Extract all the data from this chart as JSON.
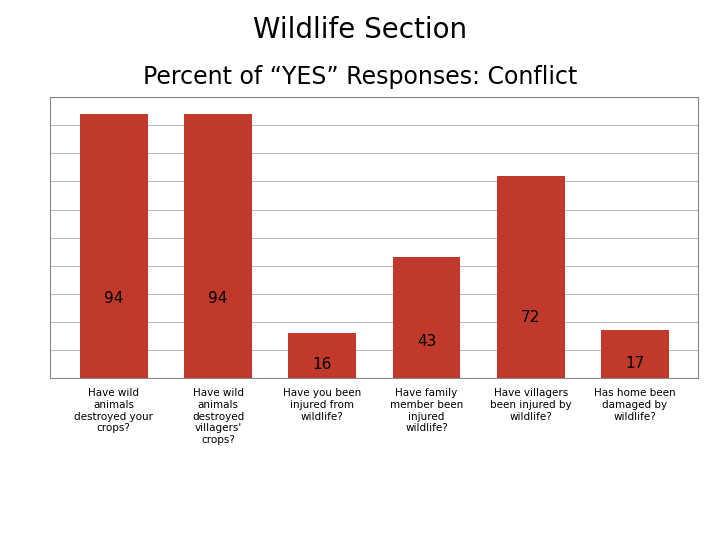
{
  "title_line1": "Wildlife Section",
  "title_line2": "Percent of “YES” Responses: Conflict",
  "categories": [
    "Have wild\nanimals\ndestroyed your\ncrops?",
    "Have wild\nanimals\ndestroyed\nvillagers'\ncrops?",
    "Have you been\ninjured from\nwildlife?",
    "Have family\nmember been\ninjured\nwildlife?",
    "Have villagers\nbeen injured by\nwildlife?",
    "Has home been\ndamaged by\nwildlife?"
  ],
  "values": [
    94,
    94,
    16,
    43,
    72,
    17
  ],
  "bar_color": "#C0392B",
  "background_color": "#FFFFFF",
  "ylim": [
    0,
    100
  ],
  "yticks": [
    0,
    10,
    20,
    30,
    40,
    50,
    60,
    70,
    80,
    90,
    100
  ],
  "title_fontsize": 20,
  "subtitle_fontsize": 17,
  "value_fontsize": 11,
  "xlabel_fontsize": 7.5
}
